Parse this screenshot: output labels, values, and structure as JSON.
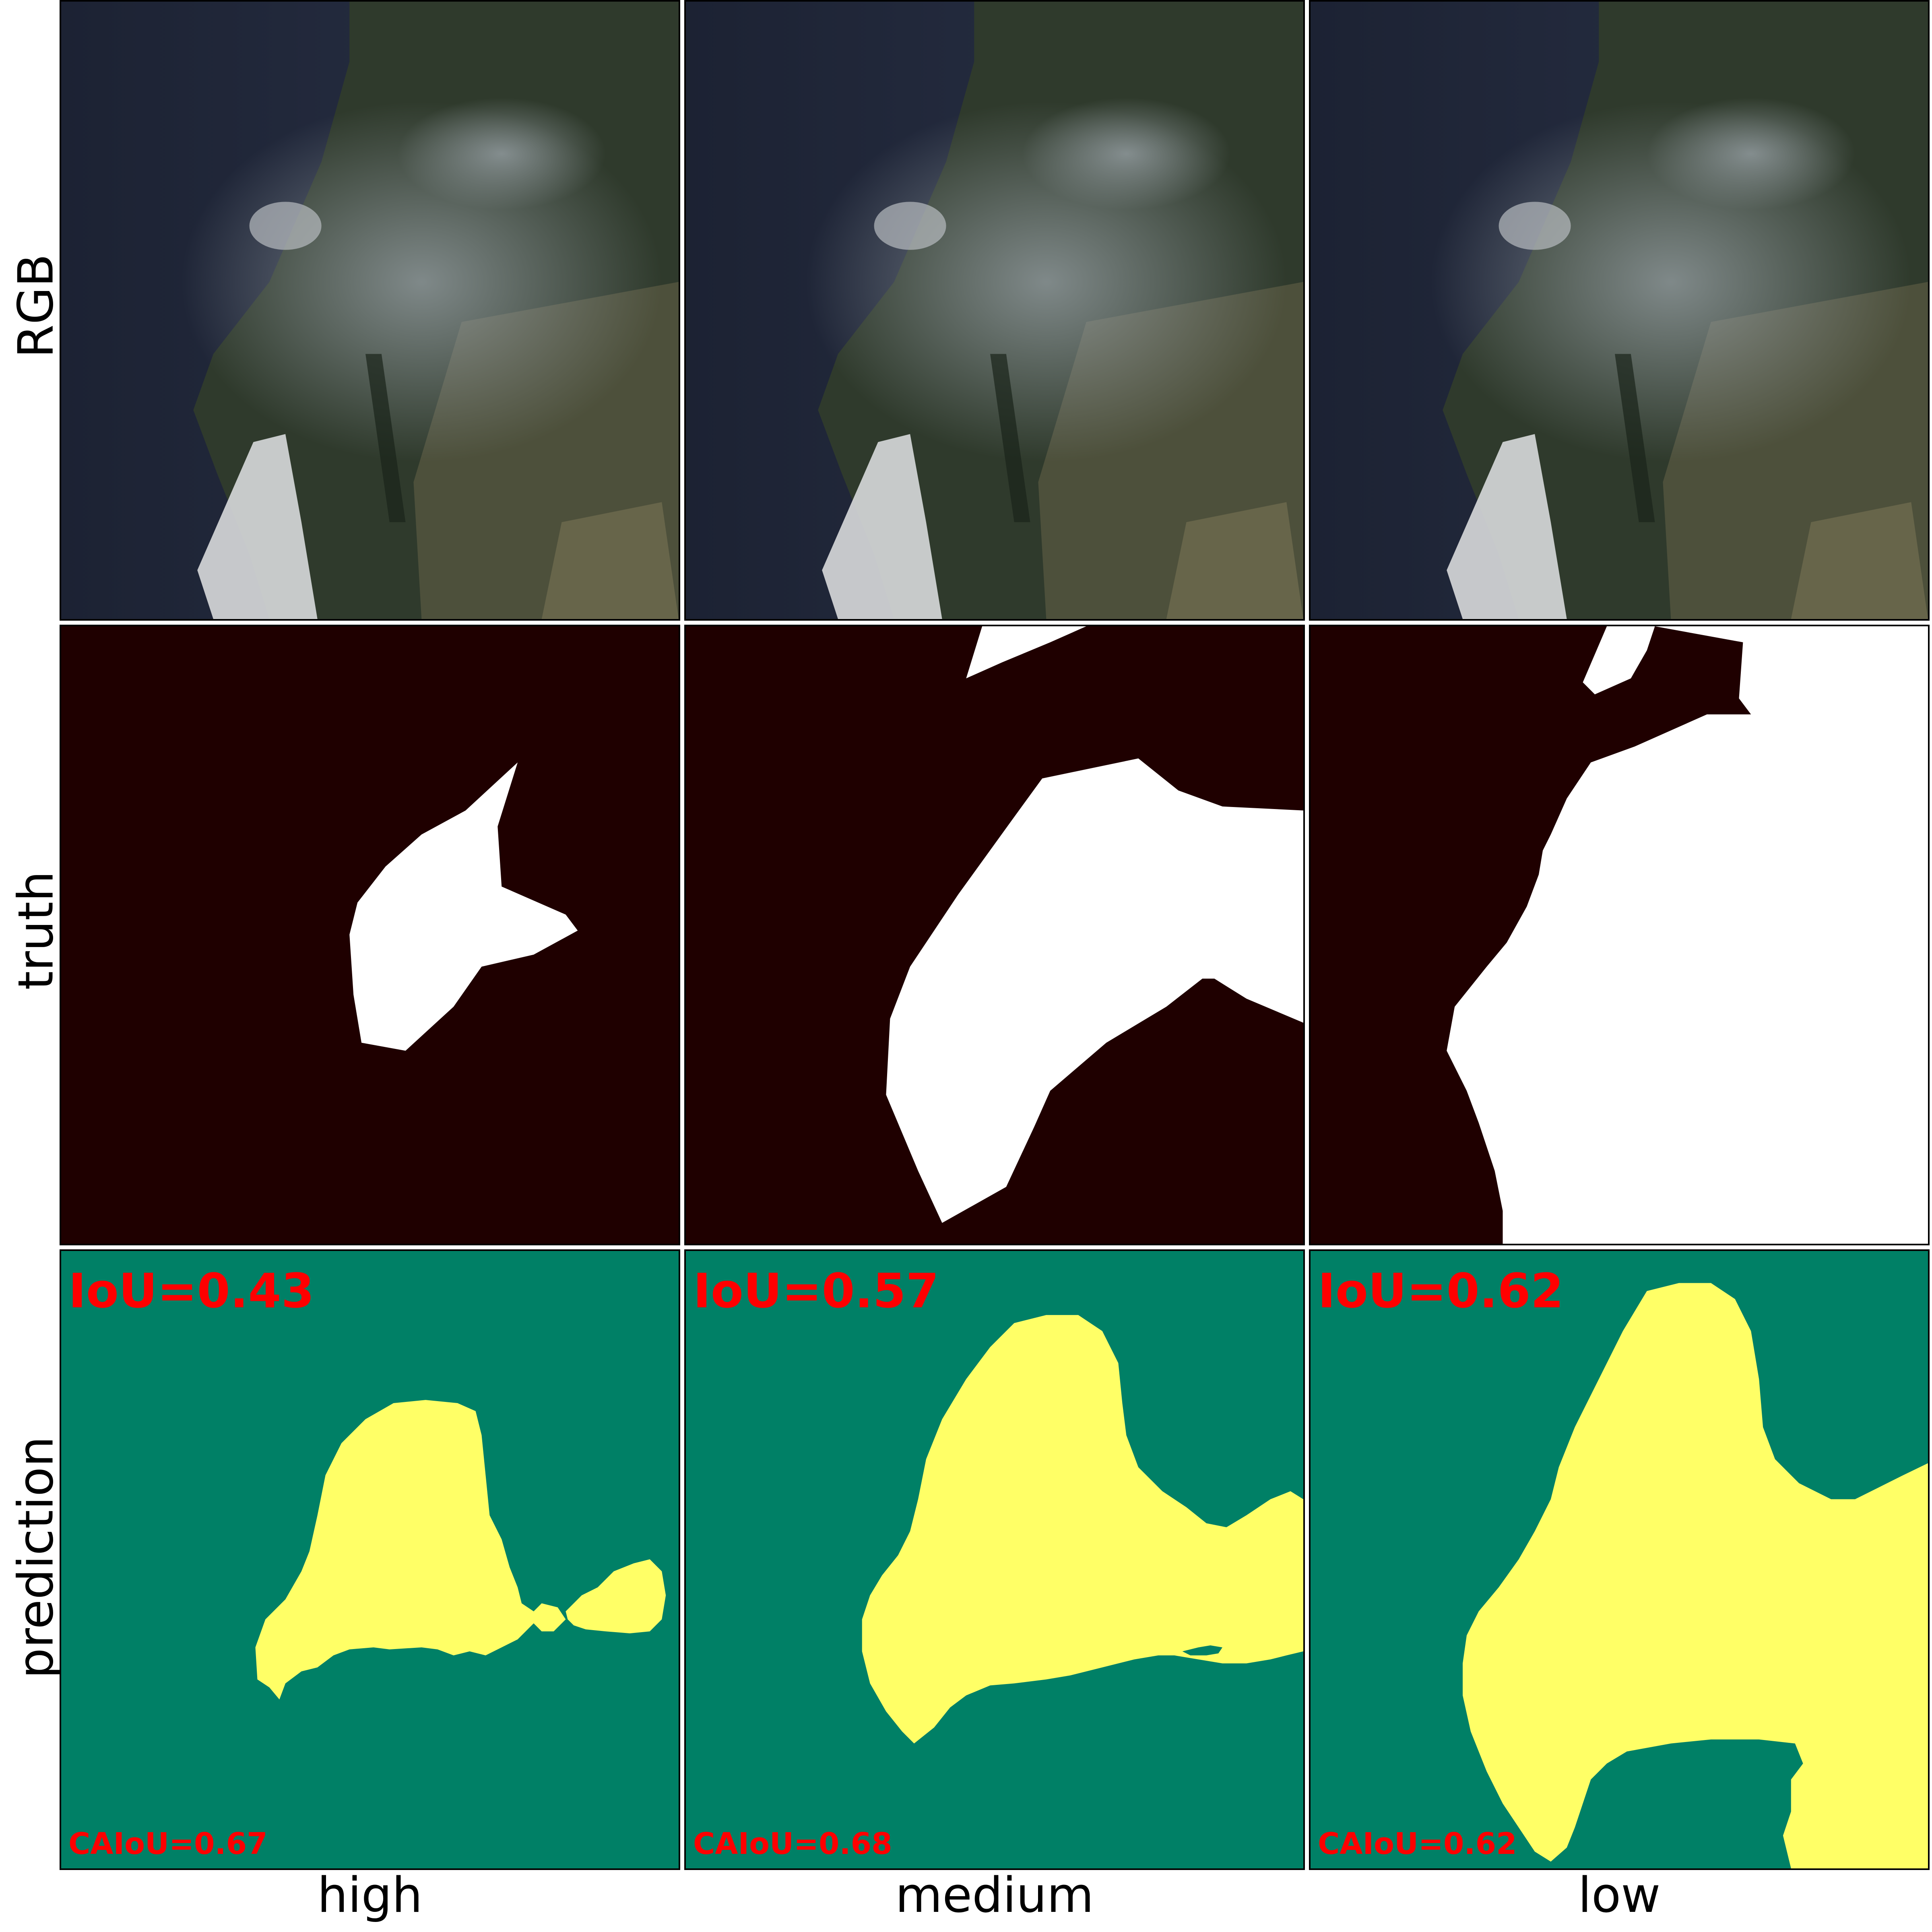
{
  "rows": {
    "rgb": "RGB",
    "truth": "truth",
    "prediction": "prediction"
  },
  "columns": {
    "high": "high",
    "medium": "medium",
    "low": "low"
  },
  "metrics": {
    "high": {
      "iou": "IoU=0.43",
      "caiou": "CAIoU=0.67"
    },
    "medium": {
      "iou": "IoU=0.57",
      "caiou": "CAIoU=0.68"
    },
    "low": {
      "iou": "IoU=0.62",
      "caiou": "CAIoU=0.62"
    }
  },
  "colors": {
    "truth_background": "#1f0000",
    "truth_mask": "#ffffff",
    "prediction_background": "#008066",
    "prediction_mask": "#ffff66",
    "metric_text": "#ff0000"
  }
}
